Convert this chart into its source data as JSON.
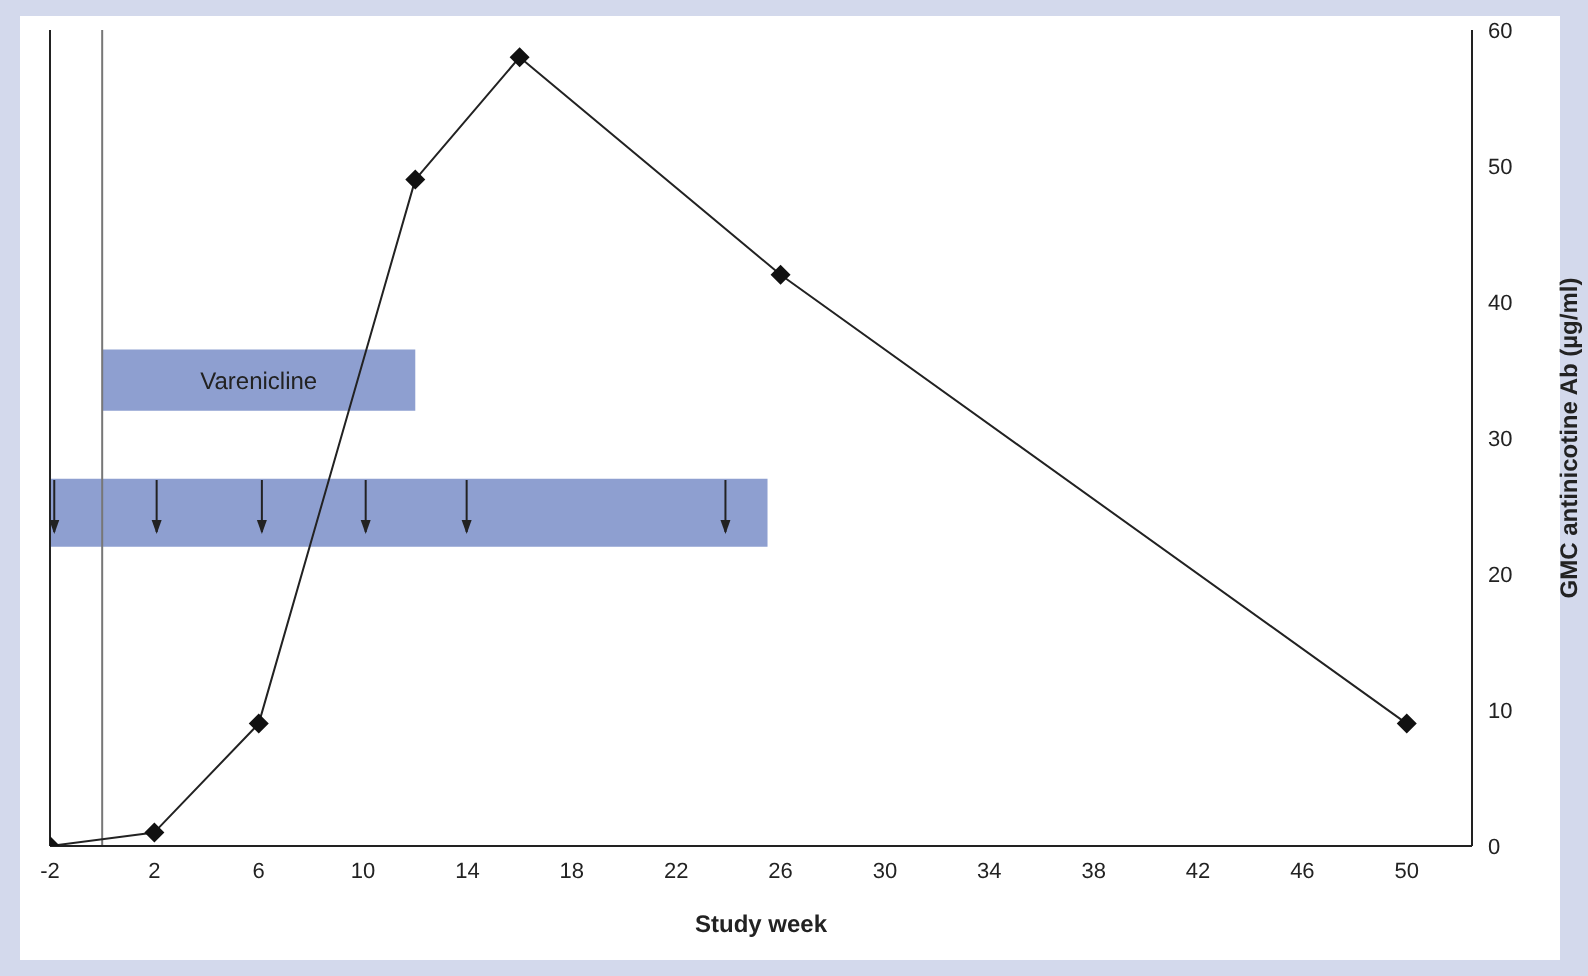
{
  "chart_data": {
    "type": "line",
    "xlabel": "Study week",
    "ylabel": "GMC antinicotine Ab (µg/ml)",
    "x": [
      -2,
      2,
      6,
      12,
      16,
      26,
      50
    ],
    "series": [
      {
        "color": "#222222",
        "values": [
          0,
          1,
          9,
          49,
          58,
          42,
          9
        ]
      }
    ],
    "xlim": [
      -2,
      52.5
    ],
    "xticks": [
      -2,
      2,
      6,
      10,
      14,
      18,
      22,
      26,
      30,
      34,
      38,
      42,
      46,
      50
    ],
    "ylim": [
      0,
      60
    ],
    "yticks": [
      0,
      10,
      20,
      30,
      40,
      50,
      60
    ],
    "bands": [
      {
        "axis": "x",
        "from": 0,
        "to": 12,
        "label": "Varenicline",
        "color": "#8e9fd0"
      },
      {
        "axis": "x",
        "from": -2,
        "to": 25.5,
        "color": "#8e9fd0"
      }
    ],
    "ref_lines": [
      {
        "axis": "x",
        "value": 0,
        "color": "#777777"
      }
    ],
    "marker": "diamond",
    "grid": false,
    "legend": false
  }
}
